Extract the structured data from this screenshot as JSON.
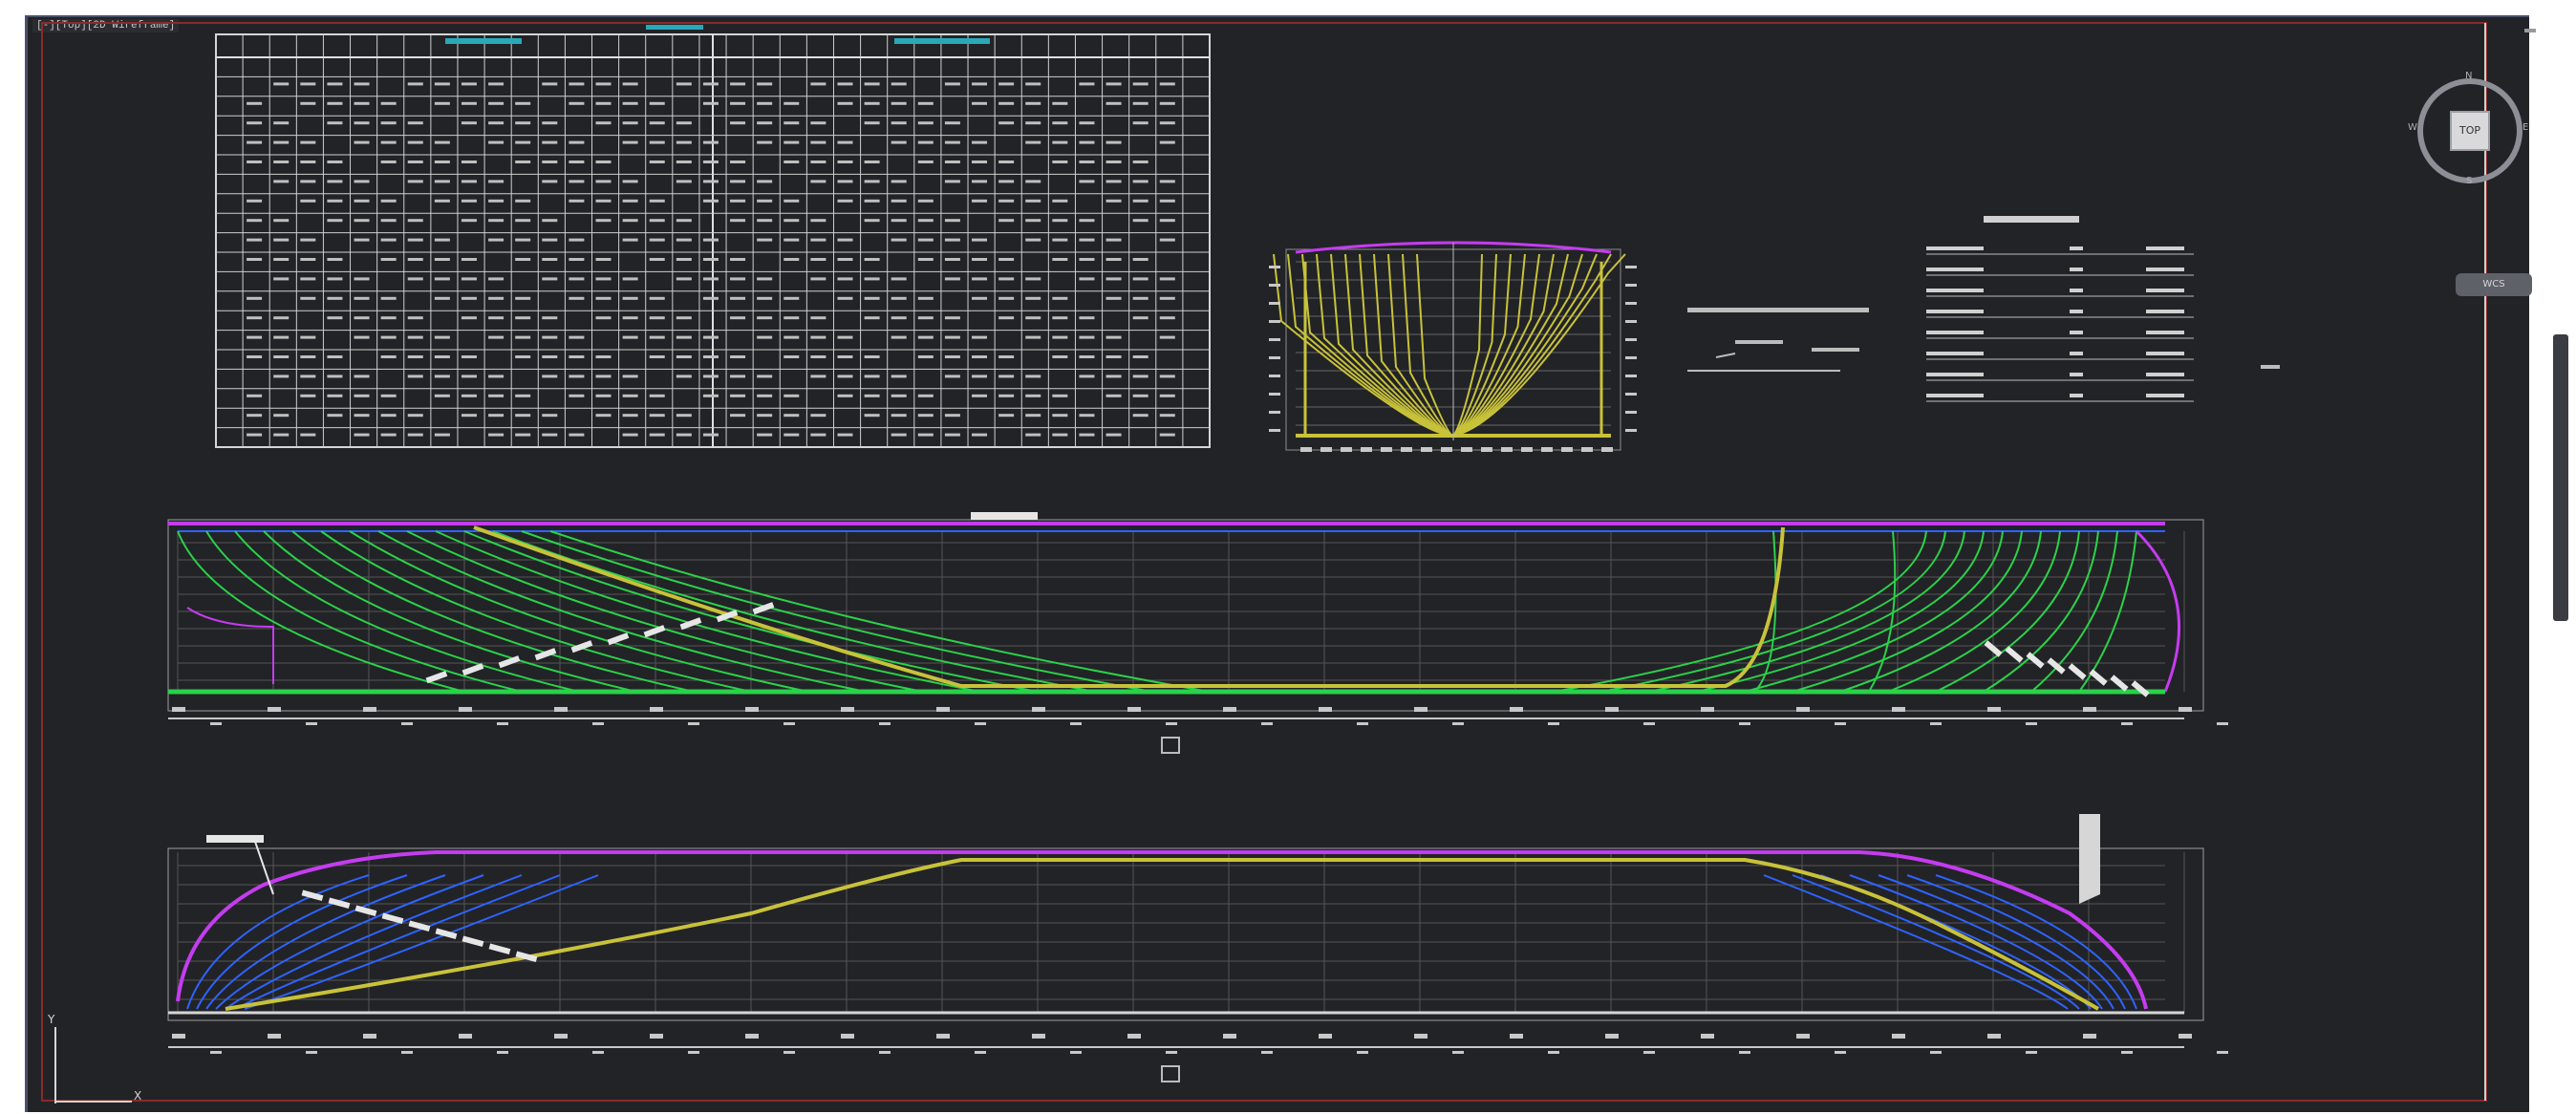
{
  "viewport_label": "[-][Top][2D Wireframe]",
  "top_caption": "",
  "navcube": {
    "face_label": "TOP",
    "north": "N",
    "south": "S",
    "east": "E",
    "west": "W",
    "wcs_label": "WCS"
  },
  "ucs": {
    "x_label": "X",
    "y_label": "Y"
  },
  "colors": {
    "background": "#222326",
    "grid": "#d6d6d6",
    "green": "#2bd14a",
    "yellow": "#c8c23a",
    "magenta": "#c43cf0",
    "blue": "#2e63ff",
    "cyan": "#33d6e6",
    "border_red": "#a03030"
  },
  "offsets_table": {
    "left_header": "HALF BREADTHS",
    "right_header": "HEIGHTS ABOVE BASE LINE",
    "center_header": "TABLE OF OFFSETS",
    "rows": 20,
    "columns": 37
  },
  "body_plan": {
    "title": "BODY PLAN"
  },
  "legend_note": {
    "title": "PRINCIPAL DIMENSIONS"
  },
  "sheer_plan": {
    "label": "SHEER PLAN"
  },
  "half_breadth_plan": {
    "label": "HALF BREADTH PLAN"
  }
}
